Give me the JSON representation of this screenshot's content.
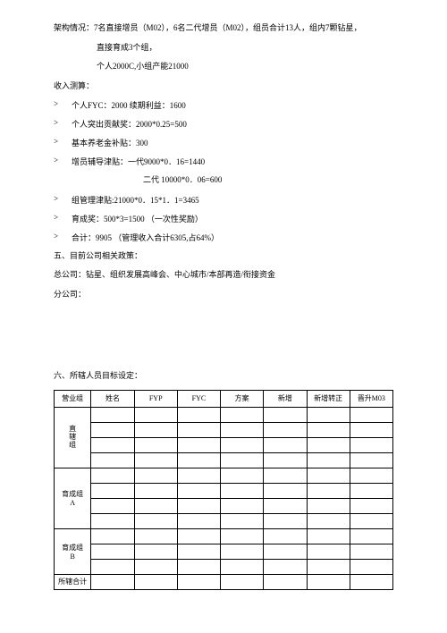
{
  "situation_line": "架构情况：7名直接增员（M02），6名二代增员（M02），组员合计13人，组内7颗钻星，",
  "situation_line2": "直接育成3个组，",
  "situation_line3": "个人2000C,小组产能21000",
  "income_title": "收入测算：",
  "income_items": [
    "个人FYC：2000 续期利益：1600",
    "个人突出贡献奖：2000*0.25=500",
    "基本养老金补贴：300",
    "增员辅导津贴：一代9000*0．16=1440",
    "",
    "组管理津贴:21000*0．15*1．1=3465",
    "育成奖：500*3=1500 （一次性奖励）",
    "合计：9905 （管理收入合计6305,占64%）"
  ],
  "income_subline": "二代 10000*0．06=600",
  "section5": "五、目前公司相关政策：",
  "headoffice": "总公司：钻星、组织发展高峰会、中心城市/本部再造/衔接资金",
  "branch": "分公司：",
  "section6": "六、所辖人员目标设定：",
  "table": {
    "headers": [
      "营业组",
      "姓名",
      "FYP",
      "FYC",
      "方案",
      "新增",
      "新增转正",
      "晋升M03"
    ],
    "groups": [
      {
        "label": "直辖组",
        "vertical": true,
        "rows": 4
      },
      {
        "label": "育成组A",
        "vertical": false,
        "rows": 4
      },
      {
        "label": "育成组B",
        "vertical": false,
        "rows": 3
      }
    ],
    "footer": "所辖合计"
  }
}
